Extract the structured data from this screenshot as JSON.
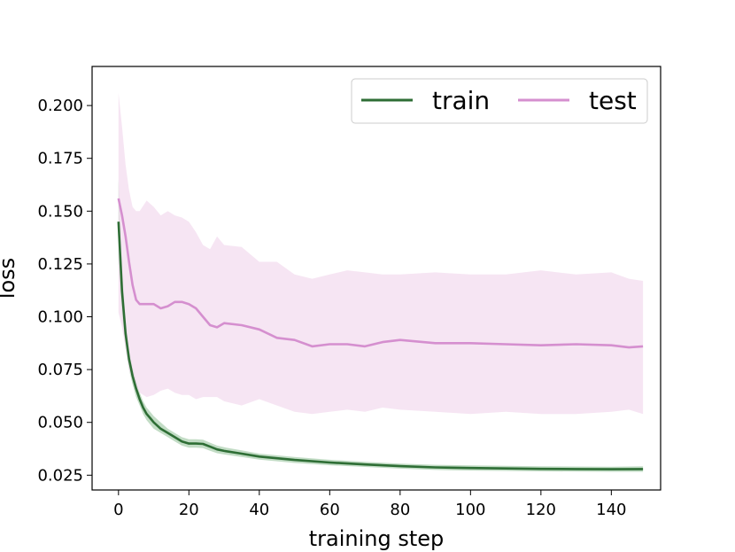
{
  "chart_data": {
    "type": "line",
    "title": "",
    "xlabel": "training step",
    "ylabel": "loss",
    "xlim": [
      -7.5,
      154
    ],
    "ylim": [
      0.018,
      0.2185
    ],
    "xticks": [
      0,
      20,
      40,
      60,
      80,
      100,
      120,
      140
    ],
    "yticks": [
      0.025,
      0.05,
      0.075,
      0.1,
      0.125,
      0.15,
      0.175,
      0.2
    ],
    "xtick_labels": [
      "0",
      "20",
      "40",
      "60",
      "80",
      "100",
      "120",
      "140"
    ],
    "ytick_labels": [
      "0.025",
      "0.050",
      "0.075",
      "0.100",
      "0.125",
      "0.150",
      "0.175",
      "0.200"
    ],
    "grid": false,
    "legend": {
      "position": "top-right",
      "columns": 2
    },
    "series": [
      {
        "name": "train",
        "color": "#2e6e35",
        "band_color": "#8fbf95",
        "x": [
          0,
          1,
          2,
          3,
          4,
          5,
          6,
          7,
          8,
          9,
          10,
          12,
          14,
          16,
          18,
          20,
          22,
          24,
          26,
          28,
          30,
          35,
          40,
          45,
          50,
          60,
          70,
          80,
          90,
          100,
          110,
          120,
          130,
          140,
          149
        ],
        "values": [
          0.145,
          0.112,
          0.092,
          0.08,
          0.072,
          0.066,
          0.061,
          0.057,
          0.054,
          0.052,
          0.05,
          0.047,
          0.045,
          0.043,
          0.041,
          0.04,
          0.04,
          0.0398,
          0.0385,
          0.0372,
          0.0365,
          0.0352,
          0.0338,
          0.033,
          0.0322,
          0.031,
          0.0301,
          0.0293,
          0.0287,
          0.0284,
          0.0282,
          0.028,
          0.0279,
          0.0278,
          0.0279
        ],
        "lower": [
          0.125,
          0.1,
          0.085,
          0.075,
          0.068,
          0.062,
          0.058,
          0.054,
          0.051,
          0.049,
          0.047,
          0.045,
          0.043,
          0.041,
          0.039,
          0.038,
          0.038,
          0.0378,
          0.0366,
          0.0354,
          0.0348,
          0.0336,
          0.0324,
          0.0316,
          0.0308,
          0.0297,
          0.0289,
          0.0281,
          0.0275,
          0.0272,
          0.027,
          0.0268,
          0.0267,
          0.0266,
          0.0266
        ],
        "upper": [
          0.165,
          0.124,
          0.099,
          0.085,
          0.076,
          0.07,
          0.064,
          0.06,
          0.057,
          0.055,
          0.053,
          0.05,
          0.047,
          0.045,
          0.043,
          0.042,
          0.042,
          0.0418,
          0.0404,
          0.039,
          0.0382,
          0.0368,
          0.0352,
          0.0344,
          0.0336,
          0.0323,
          0.0313,
          0.0305,
          0.0299,
          0.0296,
          0.0294,
          0.0292,
          0.0291,
          0.029,
          0.0292
        ]
      },
      {
        "name": "test",
        "color": "#d58fcf",
        "band_color": "#f3dcef",
        "x": [
          0,
          1,
          2,
          3,
          4,
          5,
          6,
          8,
          10,
          12,
          14,
          16,
          18,
          20,
          22,
          24,
          26,
          28,
          30,
          35,
          40,
          45,
          50,
          55,
          60,
          65,
          70,
          75,
          80,
          90,
          100,
          110,
          120,
          130,
          140,
          145,
          149
        ],
        "values": [
          0.156,
          0.148,
          0.138,
          0.126,
          0.115,
          0.108,
          0.106,
          0.106,
          0.106,
          0.104,
          0.105,
          0.107,
          0.107,
          0.106,
          0.104,
          0.1,
          0.096,
          0.095,
          0.097,
          0.096,
          0.094,
          0.09,
          0.089,
          0.086,
          0.087,
          0.087,
          0.086,
          0.088,
          0.089,
          0.0875,
          0.0875,
          0.087,
          0.0865,
          0.087,
          0.0865,
          0.0855,
          0.086
        ],
        "lower": [
          0.102,
          0.095,
          0.085,
          0.075,
          0.07,
          0.067,
          0.064,
          0.062,
          0.063,
          0.065,
          0.066,
          0.064,
          0.063,
          0.063,
          0.061,
          0.062,
          0.062,
          0.062,
          0.06,
          0.058,
          0.061,
          0.058,
          0.055,
          0.054,
          0.055,
          0.056,
          0.055,
          0.057,
          0.056,
          0.055,
          0.054,
          0.055,
          0.054,
          0.054,
          0.055,
          0.056,
          0.054
        ],
        "upper": [
          0.206,
          0.19,
          0.172,
          0.16,
          0.152,
          0.15,
          0.15,
          0.155,
          0.152,
          0.148,
          0.15,
          0.148,
          0.147,
          0.145,
          0.14,
          0.134,
          0.132,
          0.138,
          0.134,
          0.133,
          0.126,
          0.126,
          0.12,
          0.118,
          0.12,
          0.122,
          0.121,
          0.12,
          0.12,
          0.121,
          0.12,
          0.12,
          0.122,
          0.12,
          0.121,
          0.118,
          0.117
        ]
      }
    ]
  }
}
